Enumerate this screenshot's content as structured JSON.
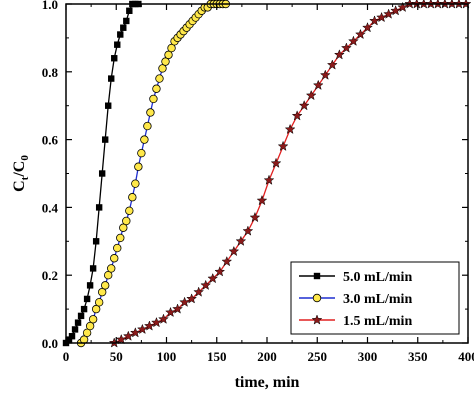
{
  "chart_data": {
    "type": "line",
    "xlabel": "time, min",
    "ylabel_main": "C",
    "ylabel_sub1": "t",
    "ylabel_mid": "/C",
    "ylabel_sub2": "0",
    "xlim": [
      0,
      400
    ],
    "ylim": [
      0,
      1.0
    ],
    "xticks": [
      0,
      50,
      100,
      150,
      200,
      250,
      300,
      350,
      400
    ],
    "yticks": [
      0.0,
      0.2,
      0.4,
      0.6,
      0.8,
      1.0
    ],
    "grid": false,
    "legend_position": "bottom-right",
    "series": [
      {
        "name": "5.0 mL/min",
        "color": "#000000",
        "line_color": "#000000",
        "marker": "square",
        "x": [
          0,
          3,
          6,
          9,
          12,
          15,
          18,
          21,
          24,
          27,
          30,
          33,
          36,
          39,
          42,
          45,
          48,
          51,
          54,
          57,
          60,
          63,
          66,
          69,
          72
        ],
        "y": [
          0.0,
          0.01,
          0.02,
          0.04,
          0.06,
          0.08,
          0.1,
          0.13,
          0.17,
          0.22,
          0.3,
          0.4,
          0.5,
          0.6,
          0.7,
          0.78,
          0.84,
          0.88,
          0.91,
          0.93,
          0.95,
          0.98,
          1.0,
          1.0,
          1.0
        ]
      },
      {
        "name": "3.0 mL/min",
        "color": "#ffe84a",
        "line_color": "#1f2ed1",
        "marker": "circle",
        "x": [
          15,
          18,
          21,
          24,
          27,
          30,
          33,
          36,
          39,
          42,
          45,
          48,
          51,
          54,
          57,
          60,
          63,
          66,
          69,
          72,
          75,
          78,
          81,
          84,
          87,
          90,
          93,
          96,
          99,
          102,
          105,
          108,
          111,
          114,
          117,
          120,
          123,
          126,
          129,
          132,
          135,
          138,
          141,
          144,
          147,
          150,
          153,
          156,
          159
        ],
        "y": [
          0.0,
          0.01,
          0.03,
          0.05,
          0.07,
          0.1,
          0.12,
          0.15,
          0.17,
          0.2,
          0.22,
          0.25,
          0.28,
          0.31,
          0.34,
          0.36,
          0.39,
          0.43,
          0.47,
          0.52,
          0.56,
          0.6,
          0.64,
          0.68,
          0.72,
          0.75,
          0.78,
          0.81,
          0.83,
          0.85,
          0.87,
          0.89,
          0.9,
          0.91,
          0.92,
          0.93,
          0.94,
          0.95,
          0.96,
          0.97,
          0.98,
          0.99,
          0.99,
          1.0,
          1.0,
          1.0,
          1.0,
          1.0,
          1.0
        ]
      },
      {
        "name": "1.5 mL/min",
        "color": "#8b1a1a",
        "line_color": "#e02020",
        "marker": "star",
        "x": [
          48,
          55,
          62,
          69,
          76,
          83,
          90,
          97,
          104,
          111,
          118,
          125,
          132,
          139,
          146,
          153,
          160,
          167,
          174,
          181,
          188,
          195,
          202,
          209,
          216,
          223,
          230,
          237,
          244,
          251,
          258,
          265,
          272,
          279,
          286,
          293,
          300,
          307,
          314,
          321,
          328,
          335,
          342,
          349,
          356,
          363,
          370,
          377,
          384,
          391,
          398
        ],
        "y": [
          0.0,
          0.01,
          0.02,
          0.03,
          0.04,
          0.05,
          0.06,
          0.07,
          0.09,
          0.1,
          0.12,
          0.13,
          0.15,
          0.17,
          0.19,
          0.21,
          0.24,
          0.27,
          0.3,
          0.33,
          0.37,
          0.42,
          0.48,
          0.53,
          0.58,
          0.63,
          0.67,
          0.7,
          0.73,
          0.76,
          0.79,
          0.82,
          0.85,
          0.87,
          0.89,
          0.91,
          0.93,
          0.95,
          0.96,
          0.97,
          0.98,
          0.99,
          1.0,
          1.0,
          1.0,
          1.0,
          1.0,
          1.0,
          1.0,
          1.0,
          1.0
        ]
      }
    ]
  }
}
